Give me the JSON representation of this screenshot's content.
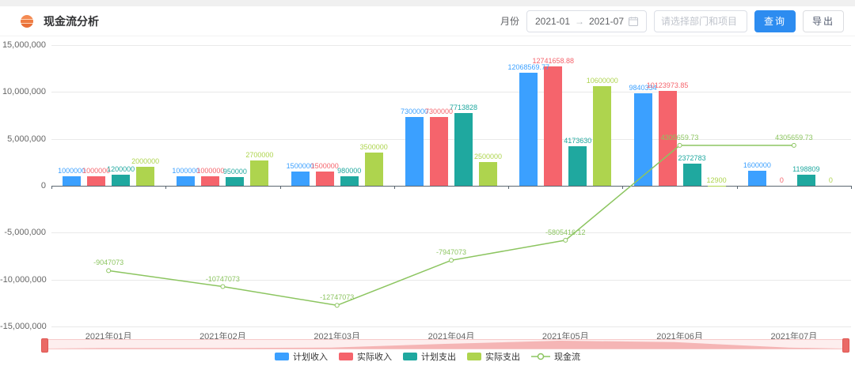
{
  "header": {
    "title": "现金流分析",
    "month_label": "月份",
    "date_start": "2021-01",
    "range_separator": "→",
    "date_end": "2021-07",
    "filter_placeholder": "请选择部门和项目",
    "query_label": "查询",
    "export_label": "导出"
  },
  "chart_data": {
    "type": "bar",
    "subtype": "grouped bars with overlaid line (ECharts style combo)",
    "categories": [
      "2021年01月",
      "2021年02月",
      "2021年03月",
      "2021年04月",
      "2021年05月",
      "2021年06月",
      "2021年07月"
    ],
    "series": [
      {
        "key": "planned-income",
        "name": "计划收入",
        "type": "bar",
        "color": "#3ba0ff",
        "values": [
          1000000,
          1000000,
          1500000,
          7300000,
          12068569.77,
          9840334,
          1600000
        ]
      },
      {
        "key": "actual-income",
        "name": "实际收入",
        "type": "bar",
        "color": "#f5646c",
        "values": [
          1000000,
          1000000,
          1500000,
          7300000,
          12741658.88,
          10123973.85,
          0
        ]
      },
      {
        "key": "planned-expense",
        "name": "计划支出",
        "type": "bar",
        "color": "#1fa89f",
        "values": [
          1200000,
          950000,
          980000,
          7713828,
          4173630,
          2372783,
          1198809
        ]
      },
      {
        "key": "actual-expense",
        "name": "实际支出",
        "type": "bar",
        "color": "#aed44e",
        "values": [
          2000000,
          2700000,
          3500000,
          2500000,
          10600000,
          12900,
          0
        ]
      },
      {
        "key": "cashflow",
        "name": "现金流",
        "type": "line",
        "color": "#8cc560",
        "values": [
          -9047073,
          -10747073,
          -12747073,
          -7947073,
          -5805416.12,
          4305659.73,
          4305659.73
        ]
      }
    ],
    "ylim": [
      -15000000,
      15000000
    ],
    "ytick_step": 5000000,
    "ytick_labels": [
      "-15,000,000",
      "-10,000,000",
      "-5,000,000",
      "0",
      "5,000,000",
      "10,000,000",
      "15,000,000"
    ],
    "grid": true,
    "value_labels": true,
    "legend_position": "bottom",
    "datazoom": {
      "present": true,
      "track_color": "#fdeeee",
      "shadow_color": "#f2a2a2",
      "handle_color": "#ea6a66"
    }
  }
}
